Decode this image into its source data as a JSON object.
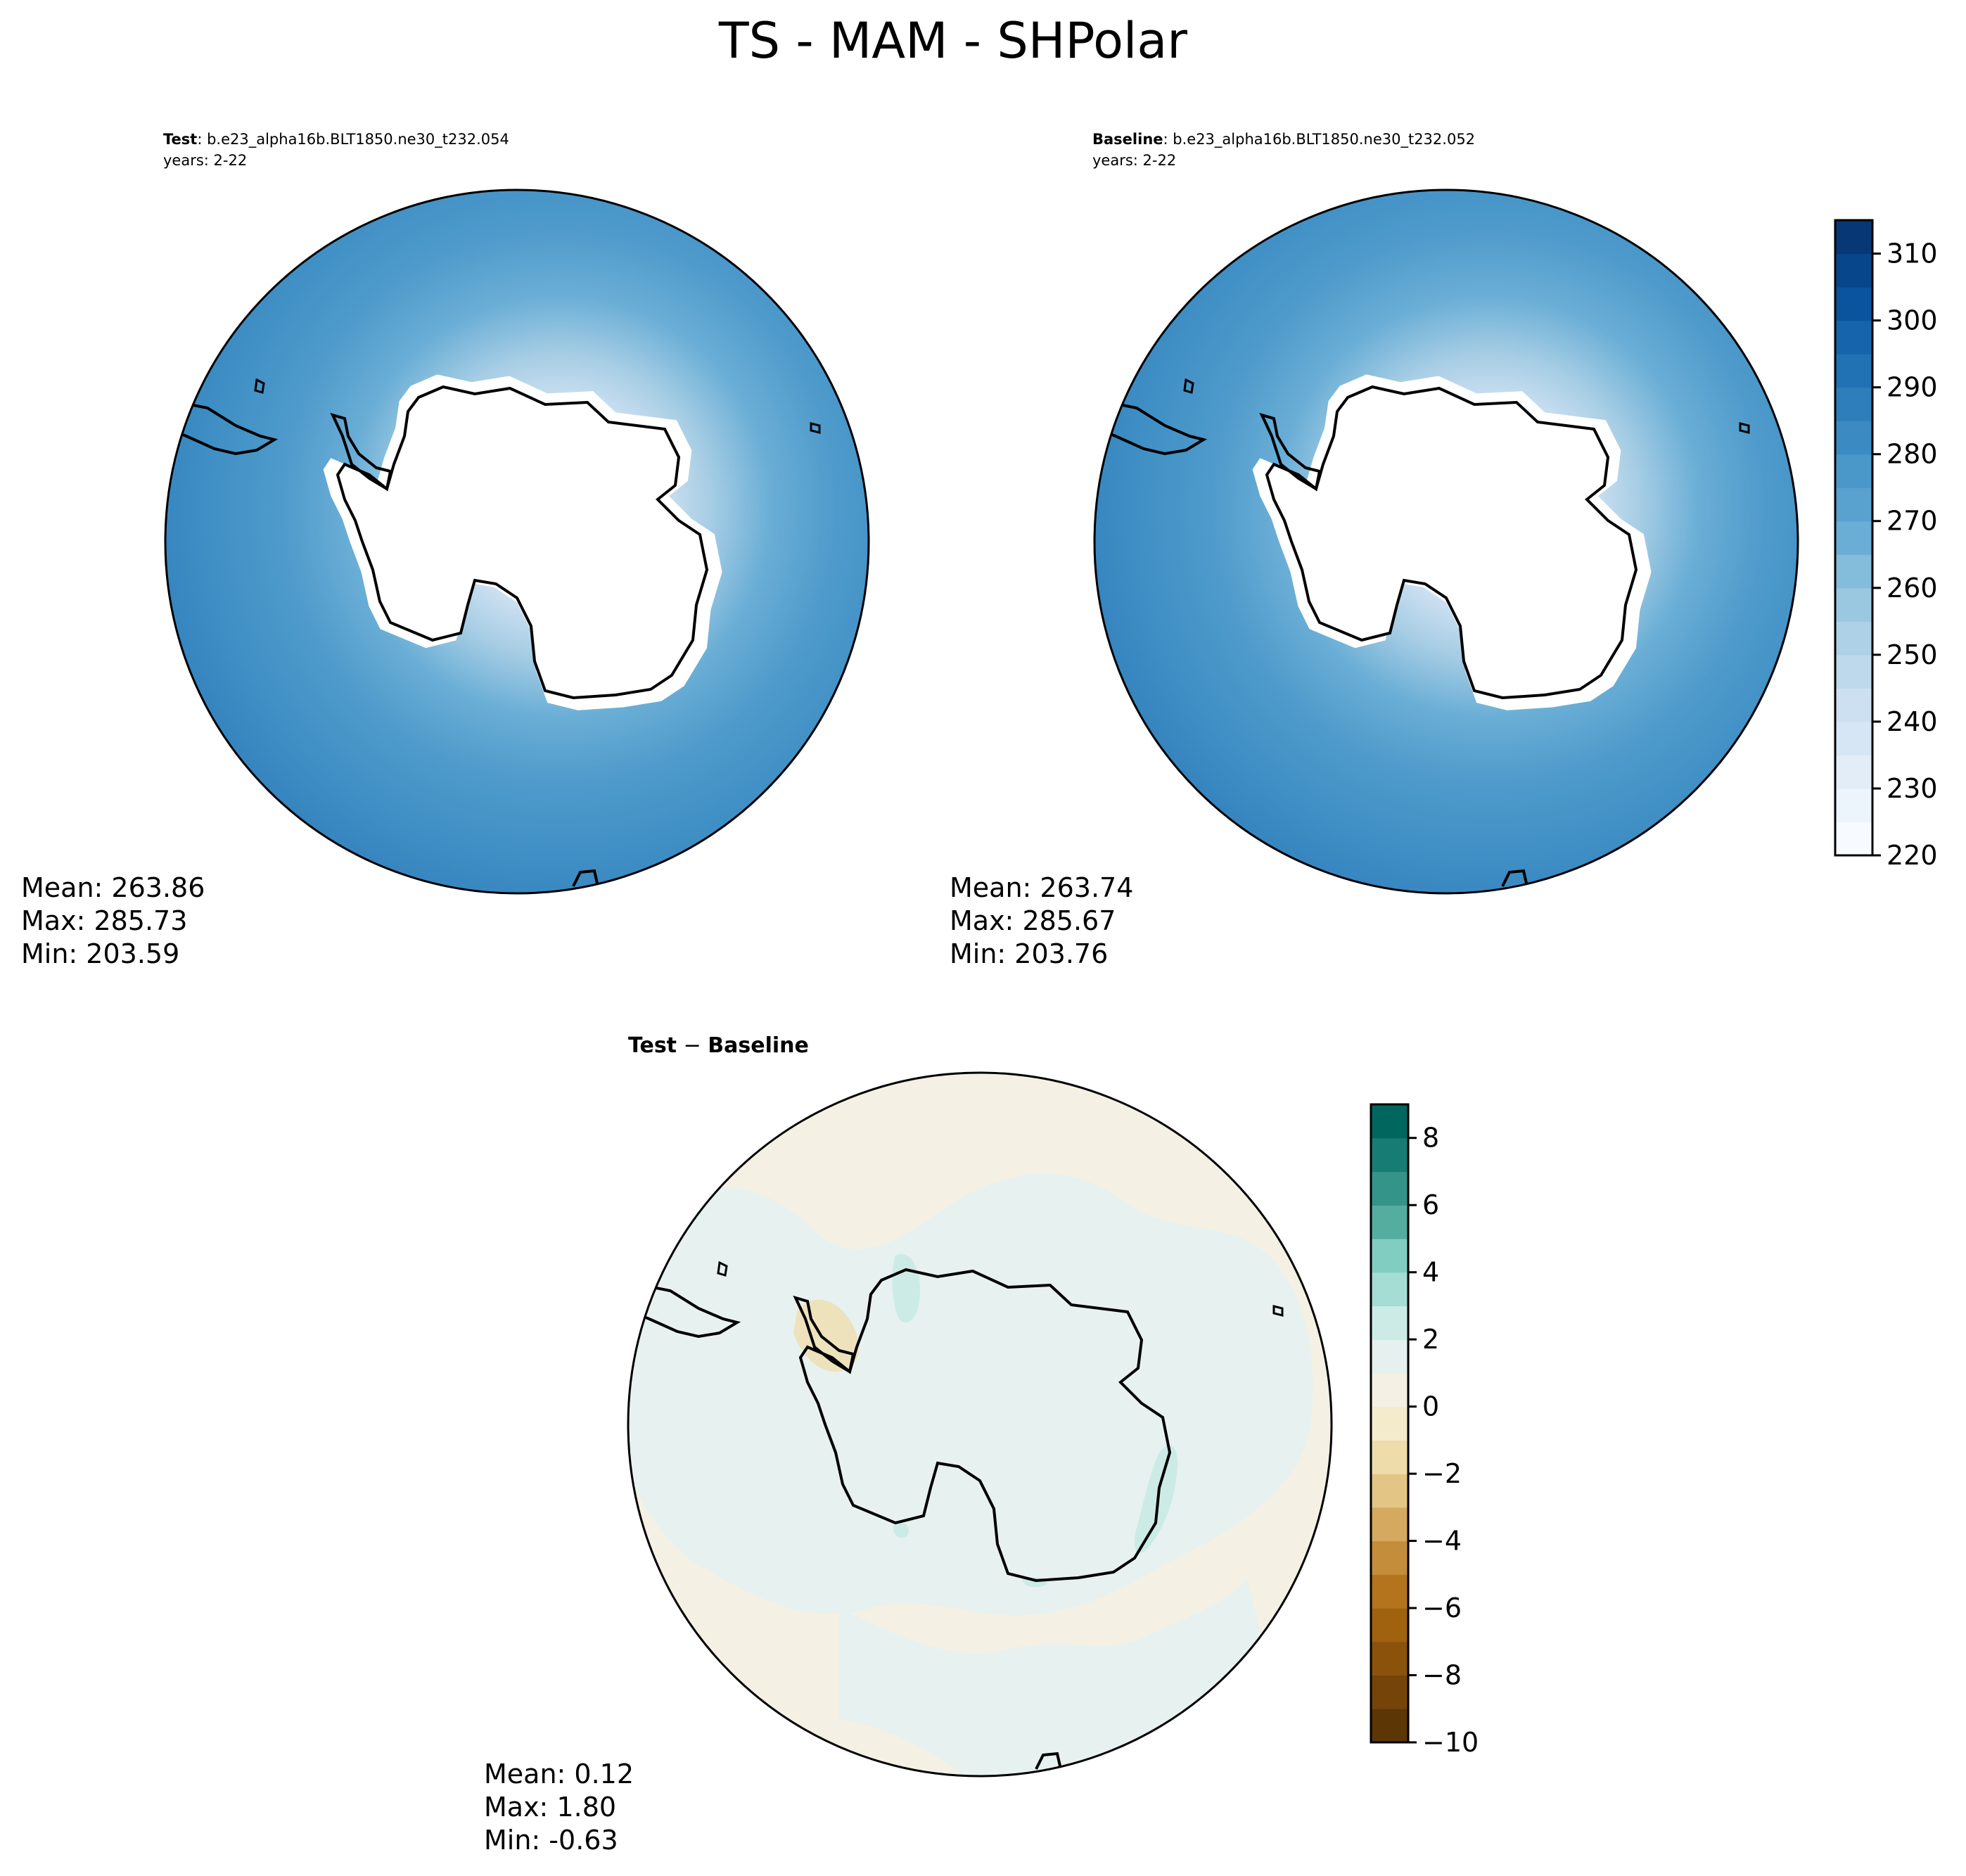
{
  "figure": {
    "title": "TS - MAM - SHPolar"
  },
  "panels": {
    "test": {
      "label": "Test",
      "case": ": b.e23_alpha16b.BLT1850.ne30_t232.054",
      "years": "years: 2-22",
      "stats": {
        "mean": "Mean: 263.86",
        "max": "Max: 285.73",
        "min": "Min: 203.59"
      }
    },
    "baseline": {
      "label": "Baseline",
      "case": ": b.e23_alpha16b.BLT1850.ne30_t232.052",
      "years": "years: 2-22",
      "stats": {
        "mean": "Mean: 263.74",
        "max": "Max: 285.67",
        "min": "Min: 203.76"
      }
    },
    "diff": {
      "label_a": "Test",
      "label_sep": " − ",
      "label_b": "Baseline",
      "stats": {
        "mean": "Mean:  0.12",
        "max": "Max:  1.80",
        "min": "Min: -0.63"
      }
    }
  },
  "chart_data": [
    {
      "type": "heatmap",
      "name": "test",
      "projection": "south-polar-stereographic",
      "colormap": "Blues",
      "mean": 263.86,
      "max": 285.73,
      "min": 203.59
    },
    {
      "type": "heatmap",
      "name": "baseline",
      "projection": "south-polar-stereographic",
      "colormap": "Blues",
      "mean": 263.74,
      "max": 285.67,
      "min": 203.76
    },
    {
      "type": "heatmap",
      "name": "diff",
      "projection": "south-polar-stereographic",
      "colormap": "BrBG",
      "mean": 0.12,
      "max": 1.8,
      "min": -0.63
    }
  ],
  "colorbars": {
    "main": {
      "range": [
        220,
        315
      ],
      "ticks": [
        220,
        230,
        240,
        250,
        260,
        270,
        280,
        290,
        300,
        310
      ],
      "tick_labels": [
        "220",
        "230",
        "240",
        "250",
        "260",
        "270",
        "280",
        "290",
        "300",
        "310"
      ],
      "colors": [
        "#f7fbff",
        "#ecf4fc",
        "#e2edf8",
        "#d6e6f4",
        "#cde0f1",
        "#bed8ec",
        "#aed1e7",
        "#9ac8e1",
        "#84bcdb",
        "#6aaed6",
        "#59a1cf",
        "#4a98c9",
        "#3b8bc2",
        "#2e7ebc",
        "#2171b5",
        "#1664ab",
        "#0a549e",
        "#08468b",
        "#083776"
      ]
    },
    "diff": {
      "range": [
        -10,
        9
      ],
      "ticks": [
        -10,
        -8,
        -6,
        -4,
        -2,
        0,
        2,
        4,
        6,
        8
      ],
      "tick_labels": [
        "−10",
        "−8",
        "−6",
        "−4",
        "−2",
        "0",
        "2",
        "4",
        "6",
        "8"
      ],
      "colors": [
        "#5c3604",
        "#744408",
        "#8a520b",
        "#a0620f",
        "#b3741d",
        "#c48d3b",
        "#d5a95f",
        "#e3c685",
        "#efdcab",
        "#f4ebcc",
        "#f4f0e4",
        "#e5f0ef",
        "#ccebe6",
        "#a5dcd4",
        "#82cdc1",
        "#55ad9f",
        "#34948a",
        "#167c74",
        "#01665e"
      ]
    }
  },
  "colors": {
    "ocean_outer": "#3787c0",
    "antarctica": "#ffffff",
    "diff_neutral_blue": "#e7f1f0",
    "diff_neutral_tan": "#f4f1e4"
  }
}
